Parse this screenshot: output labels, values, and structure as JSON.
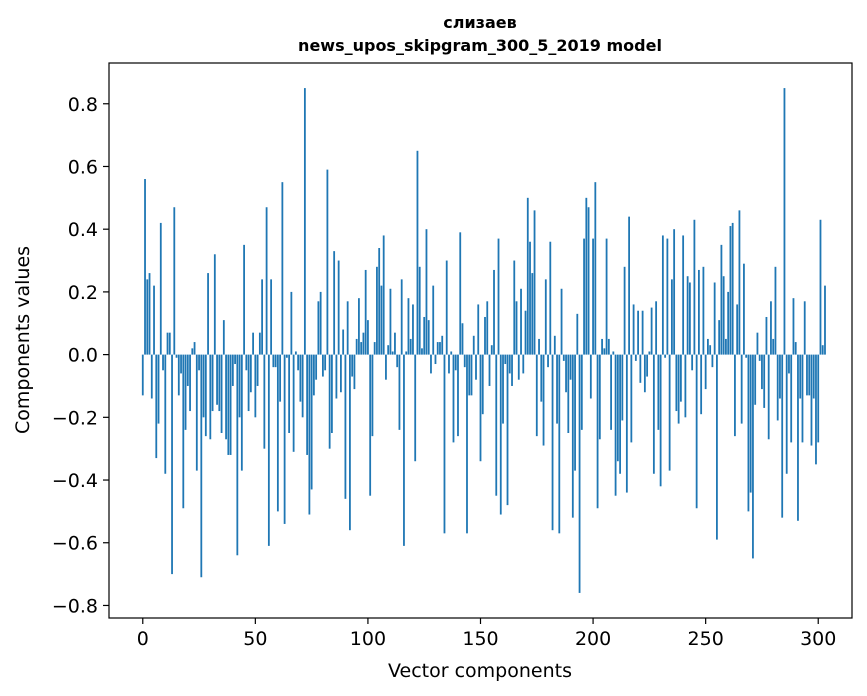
{
  "chart_data": {
    "type": "bar",
    "title_line1": "слизаев",
    "title_line2": "news_upos_skipgram_300_5_2019 model",
    "xlabel": "Vector components",
    "ylabel": "Components values",
    "xlim": [
      -15,
      315
    ],
    "ylim": [
      -0.84,
      0.93
    ],
    "xticks": [
      0,
      50,
      100,
      150,
      200,
      250,
      300
    ],
    "xtick_labels": [
      "0",
      "50",
      "100",
      "150",
      "200",
      "250",
      "300"
    ],
    "yticks": [
      -0.8,
      -0.6,
      -0.4,
      -0.2,
      0.0,
      0.2,
      0.4,
      0.6,
      0.8
    ],
    "ytick_labels": [
      "−0.8",
      "−0.6",
      "−0.4",
      "−0.2",
      "0.0",
      "0.2",
      "0.4",
      "0.6",
      "0.8"
    ],
    "color": "#1f77b4",
    "values": [
      -0.13,
      0.56,
      0.24,
      0.26,
      -0.14,
      0.22,
      -0.33,
      -0.22,
      0.42,
      -0.05,
      -0.38,
      0.07,
      0.07,
      -0.7,
      0.47,
      -0.01,
      -0.13,
      -0.06,
      -0.49,
      -0.24,
      -0.1,
      -0.18,
      0.02,
      0.04,
      -0.37,
      -0.05,
      -0.71,
      -0.2,
      -0.26,
      0.26,
      -0.27,
      -0.18,
      0.32,
      -0.16,
      -0.18,
      -0.25,
      0.11,
      -0.27,
      -0.32,
      -0.32,
      -0.1,
      -0.03,
      -0.64,
      -0.2,
      -0.37,
      0.35,
      -0.05,
      -0.18,
      -0.12,
      0.07,
      -0.2,
      -0.1,
      0.07,
      0.24,
      -0.3,
      0.47,
      -0.61,
      0.24,
      -0.04,
      -0.04,
      -0.5,
      -0.15,
      0.55,
      -0.54,
      -0.01,
      -0.25,
      0.2,
      -0.31,
      0.01,
      -0.05,
      -0.15,
      -0.2,
      0.85,
      -0.32,
      -0.51,
      -0.43,
      -0.13,
      -0.08,
      0.17,
      0.2,
      -0.07,
      -0.05,
      0.59,
      -0.3,
      -0.25,
      0.33,
      -0.14,
      0.3,
      -0.12,
      0.08,
      -0.46,
      0.17,
      -0.56,
      -0.07,
      -0.11,
      0.05,
      0.18,
      0.04,
      0.07,
      0.27,
      0.11,
      -0.45,
      -0.26,
      0.04,
      0.28,
      0.34,
      0.22,
      0.38,
      -0.08,
      0.03,
      0.21,
      0.01,
      0.07,
      -0.04,
      -0.24,
      0.24,
      -0.61,
      0.01,
      0.18,
      0.05,
      0.16,
      -0.34,
      0.65,
      0.28,
      0.02,
      0.12,
      0.4,
      0.11,
      -0.06,
      0.22,
      -0.03,
      0.04,
      0.04,
      0.06,
      -0.57,
      0.3,
      -0.06,
      0.01,
      -0.28,
      -0.05,
      -0.26,
      0.39,
      0.1,
      -0.04,
      -0.57,
      -0.13,
      -0.13,
      0.06,
      -0.08,
      0.16,
      -0.34,
      -0.19,
      0.12,
      0.17,
      -0.1,
      0.03,
      0.27,
      -0.45,
      0.37,
      -0.51,
      -0.22,
      -0.03,
      -0.48,
      -0.06,
      -0.1,
      0.3,
      0.17,
      -0.08,
      0.21,
      -0.06,
      0.14,
      0.5,
      0.36,
      0.26,
      0.46,
      -0.26,
      0.05,
      -0.15,
      -0.29,
      0.24,
      -0.04,
      0.36,
      -0.56,
      0.06,
      -0.22,
      -0.57,
      0.21,
      -0.02,
      -0.12,
      -0.25,
      -0.08,
      -0.52,
      -0.37,
      0.13,
      -0.76,
      -0.24,
      0.37,
      0.5,
      0.47,
      -0.14,
      0.37,
      0.55,
      -0.49,
      -0.27,
      0.05,
      0.02,
      0.37,
      0.05,
      -0.24,
      0.01,
      -0.45,
      -0.34,
      -0.38,
      -0.21,
      0.28,
      -0.44,
      0.44,
      -0.28,
      0.16,
      -0.02,
      0.14,
      -0.09,
      0.14,
      -0.12,
      -0.07,
      0.01,
      0.15,
      -0.38,
      0.17,
      -0.24,
      -0.42,
      0.38,
      -0.01,
      0.37,
      -0.37,
      0.24,
      0.4,
      -0.18,
      -0.22,
      -0.15,
      0.38,
      -0.2,
      0.25,
      0.23,
      -0.05,
      0.43,
      -0.49,
      0.27,
      -0.19,
      0.28,
      -0.11,
      0.05,
      0.03,
      -0.04,
      0.23,
      -0.59,
      0.11,
      0.35,
      0.25,
      0.05,
      0.2,
      0.41,
      0.42,
      -0.26,
      0.16,
      0.46,
      -0.22,
      0.29,
      -0.01,
      -0.5,
      -0.44,
      -0.65,
      -0.16,
      0.07,
      -0.02,
      -0.11,
      -0.17,
      0.12,
      -0.27,
      0.17,
      0.05,
      0.28,
      -0.21,
      -0.14,
      -0.52,
      0.85,
      -0.38,
      -0.06,
      -0.28,
      0.18,
      0.04,
      -0.53,
      -0.14,
      -0.28,
      0.17,
      -0.13,
      -0.13,
      -0.29,
      -0.14,
      -0.35,
      -0.28,
      0.43,
      0.03,
      0.22
    ]
  }
}
